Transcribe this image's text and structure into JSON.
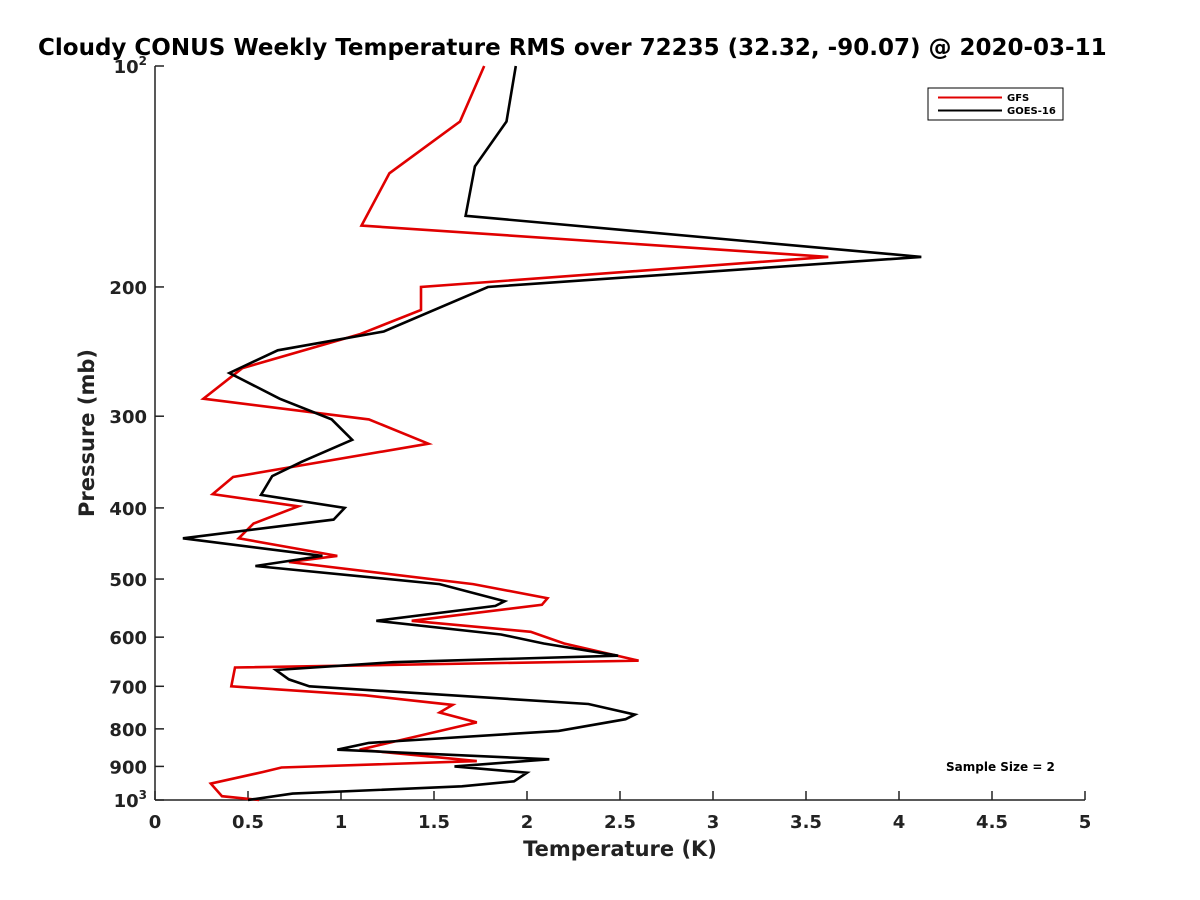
{
  "chart_data": {
    "type": "line",
    "title": "Cloudy CONUS Weekly Temperature RMS over 72235 (32.32, -90.07) @ 2020-03-11",
    "xlabel": "Temperature (K)",
    "ylabel": "Pressure (mb)",
    "xlim": [
      0,
      5
    ],
    "ylim": [
      1000,
      100
    ],
    "y_scale": "log",
    "x_ticks": [
      "0",
      "0.5",
      "1",
      "1.5",
      "2",
      "2.5",
      "3",
      "3.5",
      "4",
      "4.5",
      "5"
    ],
    "y_ticks": [
      {
        "value": 100,
        "base": "10",
        "exp": "2"
      },
      {
        "value": 200,
        "label": "200"
      },
      {
        "value": 300,
        "label": "300"
      },
      {
        "value": 400,
        "label": "400"
      },
      {
        "value": 500,
        "label": "500"
      },
      {
        "value": 600,
        "label": "600"
      },
      {
        "value": 700,
        "label": "700"
      },
      {
        "value": 800,
        "label": "800"
      },
      {
        "value": 900,
        "label": "900"
      },
      {
        "value": 1000,
        "base": "10",
        "exp": "3"
      }
    ],
    "legend_position": "top-right",
    "grid": false,
    "annotation": "Sample Size = 2",
    "series": [
      {
        "name": "GFS",
        "color": "#e00000",
        "points": [
          [
            1.77,
            100
          ],
          [
            1.64,
            119
          ],
          [
            1.26,
            140
          ],
          [
            1.11,
            165
          ],
          [
            3.62,
            182
          ],
          [
            1.43,
            200
          ],
          [
            1.43,
            215
          ],
          [
            1.1,
            232
          ],
          [
            0.47,
            258
          ],
          [
            0.26,
            284
          ],
          [
            1.15,
            303
          ],
          [
            1.47,
            327
          ],
          [
            0.42,
            363
          ],
          [
            0.31,
            383
          ],
          [
            0.77,
            398
          ],
          [
            0.53,
            420
          ],
          [
            0.45,
            440
          ],
          [
            0.98,
            465
          ],
          [
            0.72,
            474
          ],
          [
            1.71,
            508
          ],
          [
            2.11,
            531
          ],
          [
            2.08,
            542
          ],
          [
            1.38,
            570
          ],
          [
            2.02,
            590
          ],
          [
            2.2,
            612
          ],
          [
            2.6,
            646
          ],
          [
            0.43,
            660
          ],
          [
            0.41,
            700
          ],
          [
            1.13,
            720
          ],
          [
            1.6,
            742
          ],
          [
            1.53,
            760
          ],
          [
            1.73,
            784
          ],
          [
            1.47,
            812
          ],
          [
            1.1,
            854
          ],
          [
            1.73,
            885
          ],
          [
            0.68,
            903
          ],
          [
            0.58,
            916
          ],
          [
            0.3,
            950
          ],
          [
            0.36,
            988
          ],
          [
            0.56,
            1000
          ]
        ]
      },
      {
        "name": "GOES-16",
        "color": "#000000",
        "points": [
          [
            1.94,
            100
          ],
          [
            1.89,
            119
          ],
          [
            1.72,
            137
          ],
          [
            1.67,
            160
          ],
          [
            4.12,
            182
          ],
          [
            1.79,
            200
          ],
          [
            1.23,
            230
          ],
          [
            0.66,
            244
          ],
          [
            0.4,
            262
          ],
          [
            0.67,
            284
          ],
          [
            0.95,
            303
          ],
          [
            1.06,
            323
          ],
          [
            0.79,
            346
          ],
          [
            0.63,
            362
          ],
          [
            0.57,
            384
          ],
          [
            1.02,
            400
          ],
          [
            0.96,
            415
          ],
          [
            0.15,
            440
          ],
          [
            0.9,
            465
          ],
          [
            0.54,
            480
          ],
          [
            1.53,
            508
          ],
          [
            1.88,
            536
          ],
          [
            1.83,
            544
          ],
          [
            1.19,
            570
          ],
          [
            1.86,
            595
          ],
          [
            2.09,
            612
          ],
          [
            2.49,
            636
          ],
          [
            1.28,
            649
          ],
          [
            0.65,
            665
          ],
          [
            0.72,
            685
          ],
          [
            0.83,
            700
          ],
          [
            2.33,
            740
          ],
          [
            2.58,
            765
          ],
          [
            2.53,
            776
          ],
          [
            2.17,
            805
          ],
          [
            1.15,
            836
          ],
          [
            0.98,
            854
          ],
          [
            2.12,
            880
          ],
          [
            1.61,
            900
          ],
          [
            2.0,
            918
          ],
          [
            1.93,
            943
          ],
          [
            1.65,
            958
          ],
          [
            0.74,
            980
          ],
          [
            0.5,
            1000
          ]
        ]
      }
    ]
  }
}
